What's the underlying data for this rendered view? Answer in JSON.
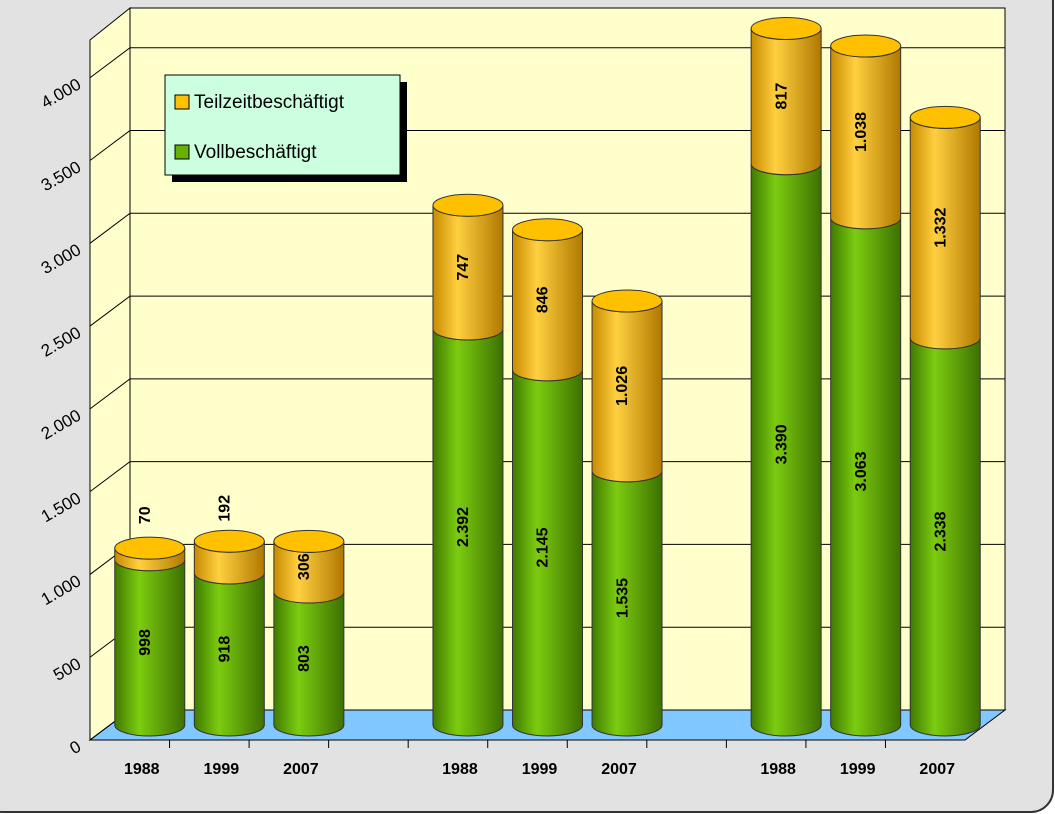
{
  "chart_data": {
    "type": "bar3d_stacked",
    "categories": [
      "1988",
      "1999",
      "2007",
      null,
      "1988",
      "1999",
      "2007",
      null,
      "1988",
      "1999",
      "2007"
    ],
    "series": [
      {
        "name": "Vollbeschäftigt",
        "color": "#66b000",
        "values": [
          998,
          918,
          803,
          null,
          2392,
          2145,
          1535,
          null,
          3390,
          3063,
          2338
        ],
        "value_labels": [
          "998",
          "918",
          "803",
          null,
          "2.392",
          "2.145",
          "1.535",
          null,
          "3.390",
          "3.063",
          "2.338"
        ]
      },
      {
        "name": "Teilzeitbeschäftigt",
        "color": "#ffc000",
        "values": [
          70,
          192,
          306,
          null,
          747,
          846,
          1026,
          null,
          817,
          1038,
          1332
        ],
        "value_labels": [
          "70",
          "192",
          "306",
          null,
          "747",
          "846",
          "1.026",
          null,
          "817",
          "1.038",
          "1.332"
        ]
      }
    ],
    "ylim": [
      0,
      4240
    ],
    "yticks": [
      0,
      500,
      {
        "value": 1000,
        "label": "1.000"
      },
      {
        "value": 1500,
        "label": "1.500"
      },
      {
        "value": 2000,
        "label": "2.000"
      },
      {
        "value": 2500,
        "label": "2.500"
      },
      {
        "value": 3000,
        "label": "3.000"
      },
      {
        "value": 3500,
        "label": "3.500"
      },
      {
        "value": 4000,
        "label": "4.000"
      }
    ],
    "grid": true,
    "legend": "upper-left"
  }
}
